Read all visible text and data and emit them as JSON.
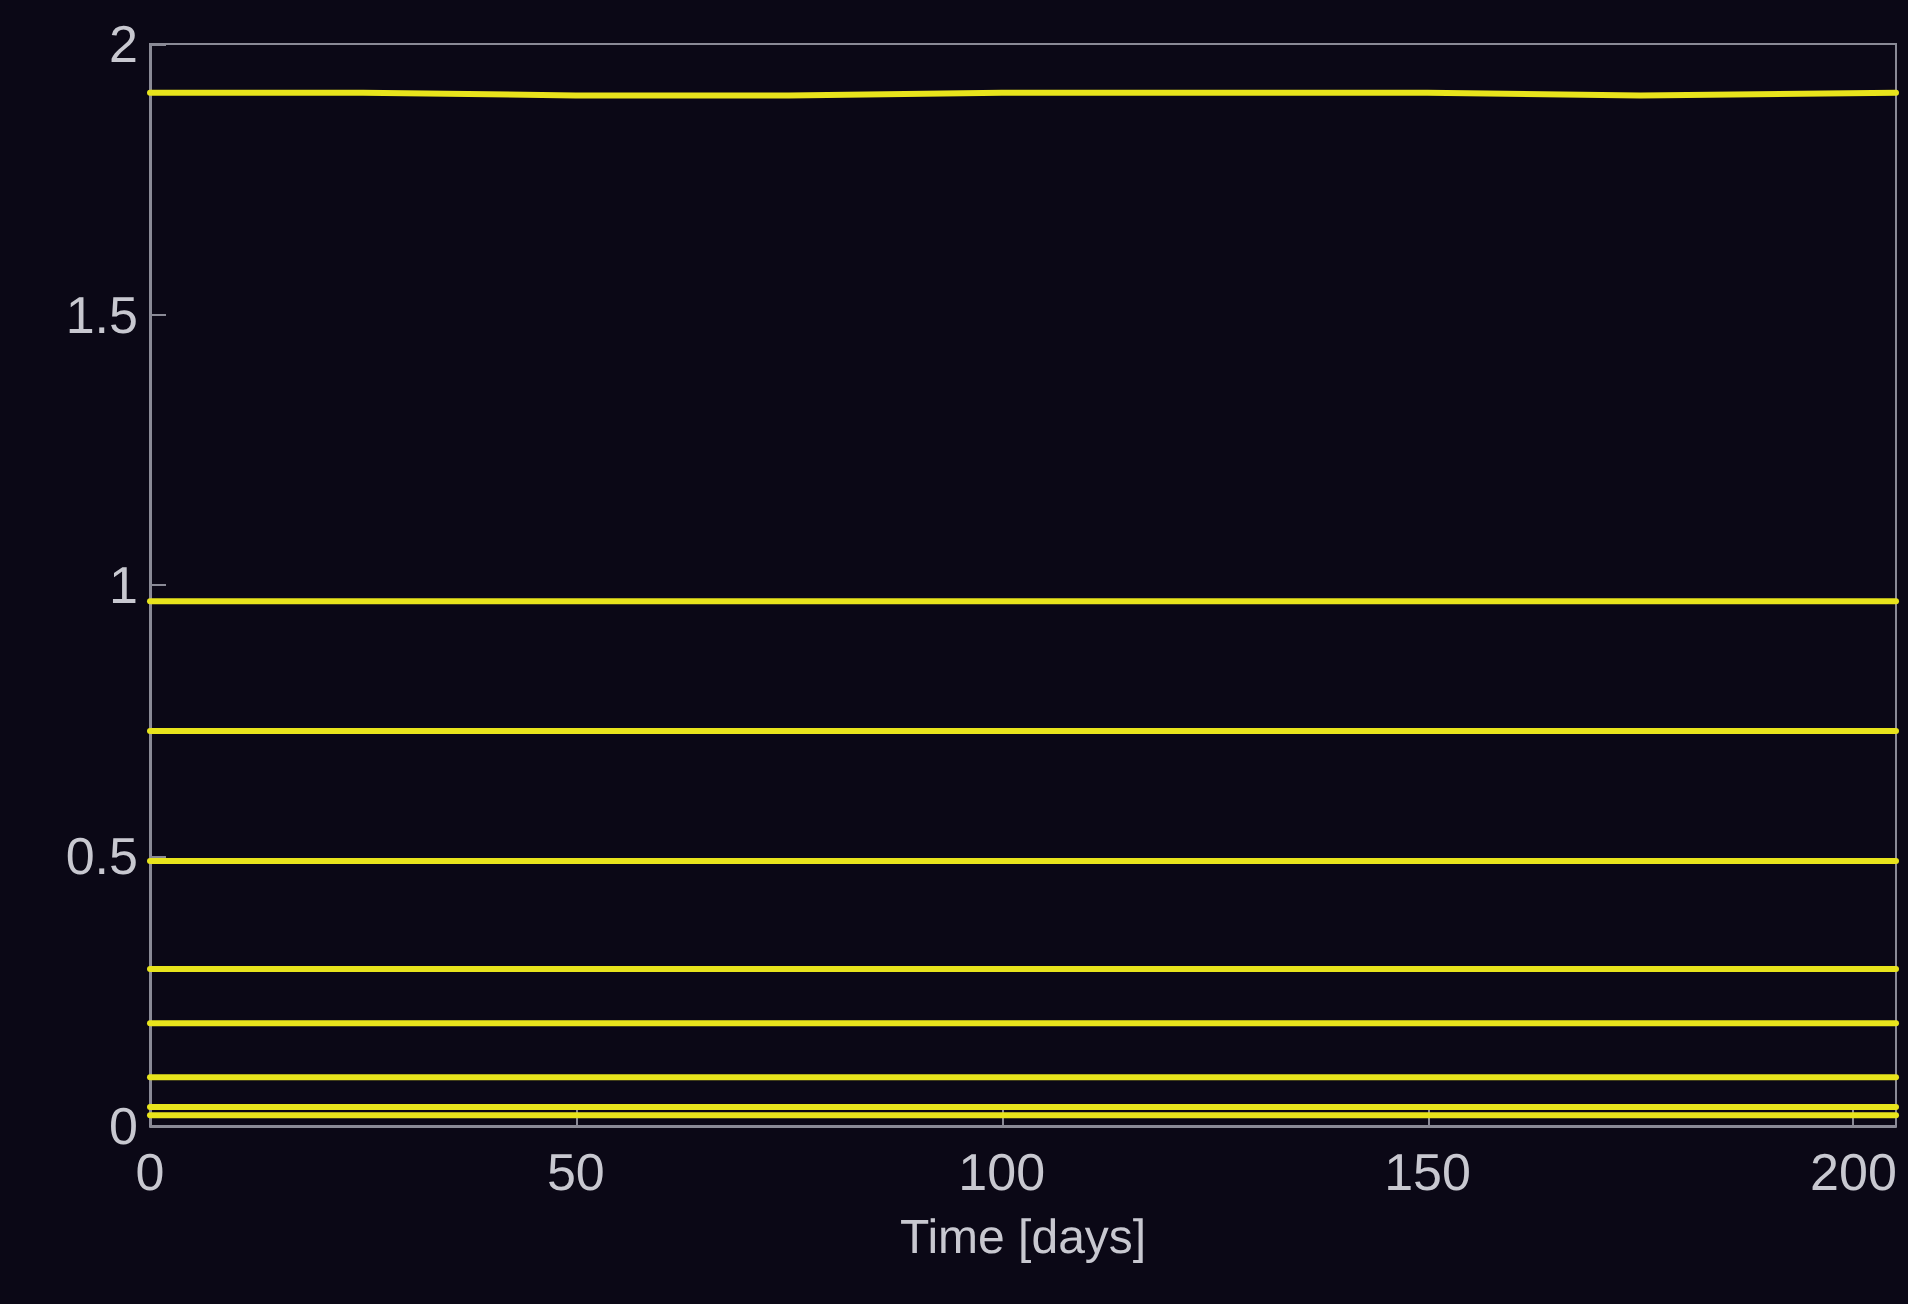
{
  "chart_data": {
    "type": "line",
    "xlabel": "Time [days]",
    "x": [
      0,
      25,
      50,
      75,
      100,
      125,
      150,
      175,
      205
    ],
    "series": [
      {
        "color": "#e8e41c",
        "values": [
          1.91,
          1.91,
          1.905,
          1.905,
          1.91,
          1.91,
          1.91,
          1.905,
          1.91
        ]
      },
      {
        "color": "#e8e41c",
        "values": [
          0.97,
          0.97,
          0.97,
          0.97,
          0.97,
          0.97,
          0.97,
          0.97,
          0.97
        ]
      },
      {
        "color": "#e8e41c",
        "values": [
          0.73,
          0.73,
          0.73,
          0.73,
          0.73,
          0.73,
          0.73,
          0.73,
          0.73
        ]
      },
      {
        "color": "#e8e41c",
        "values": [
          0.49,
          0.49,
          0.49,
          0.49,
          0.49,
          0.49,
          0.49,
          0.49,
          0.49
        ]
      },
      {
        "color": "#e8e41c",
        "values": [
          0.29,
          0.29,
          0.29,
          0.29,
          0.29,
          0.29,
          0.29,
          0.29,
          0.29
        ]
      },
      {
        "color": "#e8e41c",
        "values": [
          0.19,
          0.19,
          0.19,
          0.19,
          0.19,
          0.19,
          0.19,
          0.19,
          0.19
        ]
      },
      {
        "color": "#e8e41c",
        "values": [
          0.09,
          0.09,
          0.09,
          0.09,
          0.09,
          0.09,
          0.09,
          0.09,
          0.09
        ]
      },
      {
        "color": "#e8e41c",
        "values": [
          0.035,
          0.035,
          0.035,
          0.035,
          0.035,
          0.035,
          0.035,
          0.035,
          0.035
        ]
      },
      {
        "color": "#e8e41c",
        "values": [
          0.02,
          0.02,
          0.02,
          0.02,
          0.02,
          0.02,
          0.02,
          0.02,
          0.02
        ]
      }
    ],
    "xlim": [
      0,
      205
    ],
    "xticks": [
      0,
      50,
      100,
      150,
      200
    ],
    "ylim": [
      0,
      2
    ],
    "yticks": [
      0,
      0.5,
      1,
      1.5,
      2
    ],
    "grid": false,
    "marker": "none",
    "line_style": "solid"
  }
}
